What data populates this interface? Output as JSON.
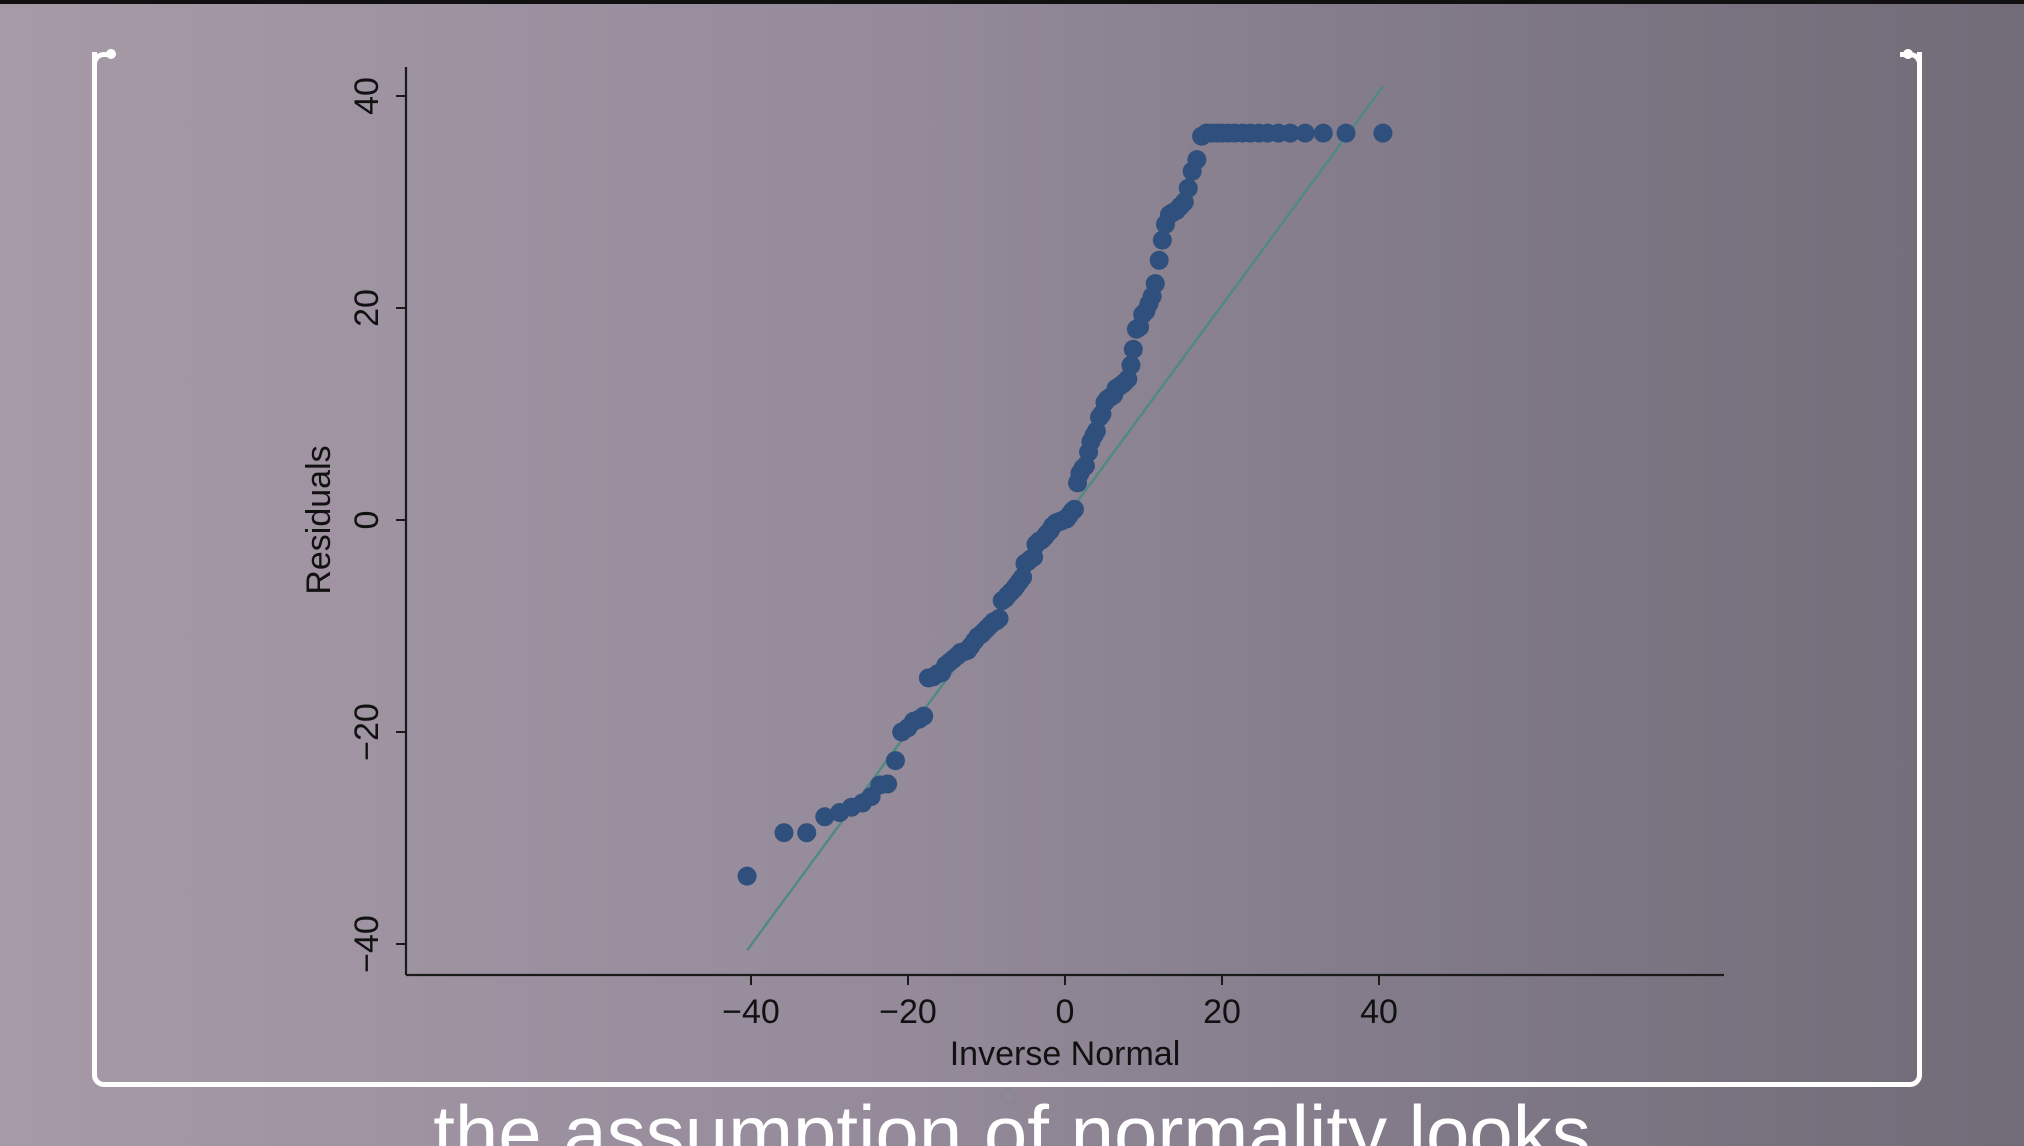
{
  "caption": "the assumption of normality looks",
  "colors": {
    "marker": "#2f4f7d",
    "reference_line": "#4e8a82",
    "axis": "#1a1a1a"
  },
  "chart_data": {
    "type": "scatter",
    "xlabel": "Inverse Normal",
    "ylabel": "Residuals",
    "xlim": [
      -42,
      42
    ],
    "ylim": [
      -43,
      43
    ],
    "xticks": [
      -40,
      -20,
      0,
      20,
      40
    ],
    "xtick_labels": [
      "−40",
      "−20",
      "0",
      "20",
      "40"
    ],
    "yticks": [
      -40,
      -20,
      0,
      20,
      40
    ],
    "ytick_labels": [
      "−40",
      "−20",
      "0",
      "20",
      "40"
    ],
    "grid": false,
    "reference_line": {
      "x": [
        -40.5,
        40.5
      ],
      "y": [
        -40.6,
        40.9
      ]
    },
    "series": [
      {
        "x": [
          -40.5,
          -35.8,
          -32.9,
          -30.6,
          -28.7,
          -27.2,
          -25.8,
          -24.7,
          -23.6,
          -22.6,
          -21.6,
          -20.8,
          -20.0,
          -19.3,
          -18.6,
          -18.0,
          -17.4,
          -16.8,
          -16.2,
          -15.7,
          -15.2,
          -14.7,
          -14.2,
          -13.7,
          -13.3,
          -12.8,
          -12.4,
          -12.0,
          -11.5,
          -11.1,
          -10.7,
          -10.3,
          -9.9,
          -9.5,
          -9.1,
          -8.7,
          -8.4,
          -8.0,
          -7.6,
          -7.3,
          -6.9,
          -6.5,
          -6.2,
          -5.8,
          -5.4,
          -5.1,
          -4.7,
          -4.4,
          -4.0,
          -3.7,
          -3.3,
          -3.0,
          -2.6,
          -2.3,
          -1.9,
          -1.6,
          -1.2,
          -0.9,
          -0.5,
          -0.2,
          0.2,
          0.5,
          0.9,
          1.2,
          1.6,
          1.9,
          2.3,
          2.6,
          3.0,
          3.3,
          3.7,
          4.0,
          4.4,
          4.7,
          5.1,
          5.4,
          5.8,
          6.2,
          6.5,
          6.9,
          7.3,
          7.6,
          8.0,
          8.4,
          8.7,
          9.1,
          9.5,
          9.9,
          10.3,
          10.7,
          11.1,
          11.5,
          12.0,
          12.4,
          12.8,
          13.3,
          13.7,
          14.2,
          14.7,
          15.2,
          15.7,
          16.2,
          16.8,
          17.4,
          18.0,
          18.6,
          19.3,
          20.0,
          20.8,
          21.6,
          22.6,
          23.6,
          24.7,
          25.8,
          27.2,
          28.7,
          30.6,
          32.9,
          35.8,
          40.5
        ],
        "y": [
          -33.6,
          -29.5,
          -29.5,
          -28.0,
          -27.6,
          -27.1,
          -26.7,
          -26.1,
          -25.0,
          -24.9,
          -22.7,
          -20.0,
          -19.6,
          -19.0,
          -18.8,
          -18.5,
          -14.9,
          -14.8,
          -14.5,
          -14.4,
          -13.7,
          -13.4,
          -13.1,
          -12.8,
          -12.5,
          -12.4,
          -12.3,
          -11.9,
          -11.4,
          -11.0,
          -10.8,
          -10.5,
          -10.2,
          -9.9,
          -9.6,
          -9.5,
          -9.3,
          -7.6,
          -7.4,
          -7.1,
          -6.8,
          -6.5,
          -6.2,
          -5.8,
          -5.4,
          -4.1,
          -3.9,
          -3.7,
          -3.5,
          -2.3,
          -2.0,
          -1.9,
          -1.6,
          -1.3,
          -1.0,
          -0.6,
          -0.3,
          -0.2,
          -0.1,
          0.0,
          0.1,
          0.4,
          0.8,
          1.0,
          3.5,
          4.4,
          4.9,
          5.1,
          6.4,
          7.4,
          8.0,
          8.4,
          9.7,
          10.0,
          11.1,
          11.4,
          11.6,
          11.8,
          12.4,
          12.6,
          12.8,
          13.0,
          13.3,
          14.6,
          16.1,
          18.0,
          18.2,
          19.4,
          19.7,
          20.4,
          21.1,
          22.3,
          24.5,
          26.4,
          27.9,
          28.8,
          29.0,
          29.2,
          29.6,
          30.0,
          31.3,
          32.9,
          34.0,
          36.2,
          36.5,
          36.5,
          36.5,
          36.5,
          36.5,
          36.5,
          36.5,
          36.5,
          36.5,
          36.5,
          36.5,
          36.5,
          36.5,
          36.5,
          36.5,
          36.5
        ]
      }
    ]
  }
}
